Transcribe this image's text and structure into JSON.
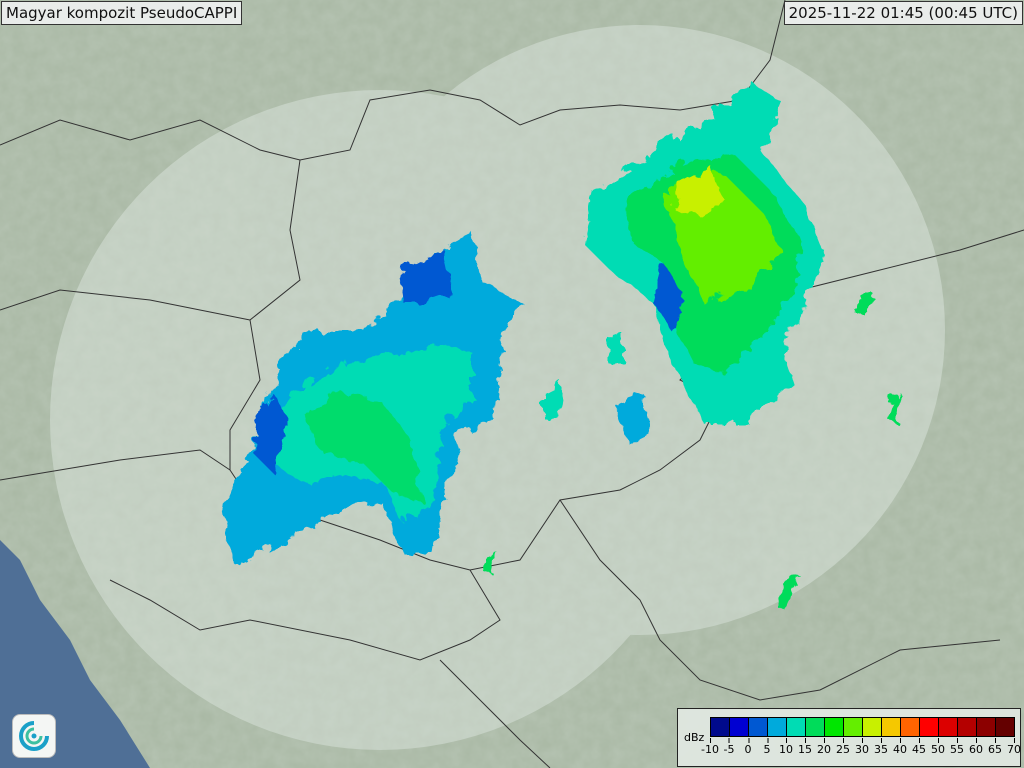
{
  "header": {
    "title": "Magyar kompozit  PseudoCAPPI",
    "timestamp": "2025-11-22 01:45 (00:45 UTC)"
  },
  "legend": {
    "unit": "dBz",
    "ticks": [
      "-10",
      "-5",
      "0",
      "5",
      "10",
      "15",
      "20",
      "25",
      "30",
      "35",
      "40",
      "45",
      "50",
      "55",
      "60",
      "65",
      "70"
    ],
    "colors": [
      "#000a8c",
      "#0000d2",
      "#0058d2",
      "#00aadc",
      "#00dcb4",
      "#00dc5a",
      "#00e600",
      "#64ee00",
      "#c8f000",
      "#f5c800",
      "#ff6400",
      "#ff0000",
      "#dc0000",
      "#b40000",
      "#8c0000",
      "#640000"
    ]
  },
  "map": {
    "type": "radar-composite",
    "coverage_color": "#dfe8e2",
    "terrain_color": "#a9b8a4",
    "sea_color": "#4f6f96"
  },
  "logo": {
    "icon": "weather-service-swirl-logo"
  }
}
